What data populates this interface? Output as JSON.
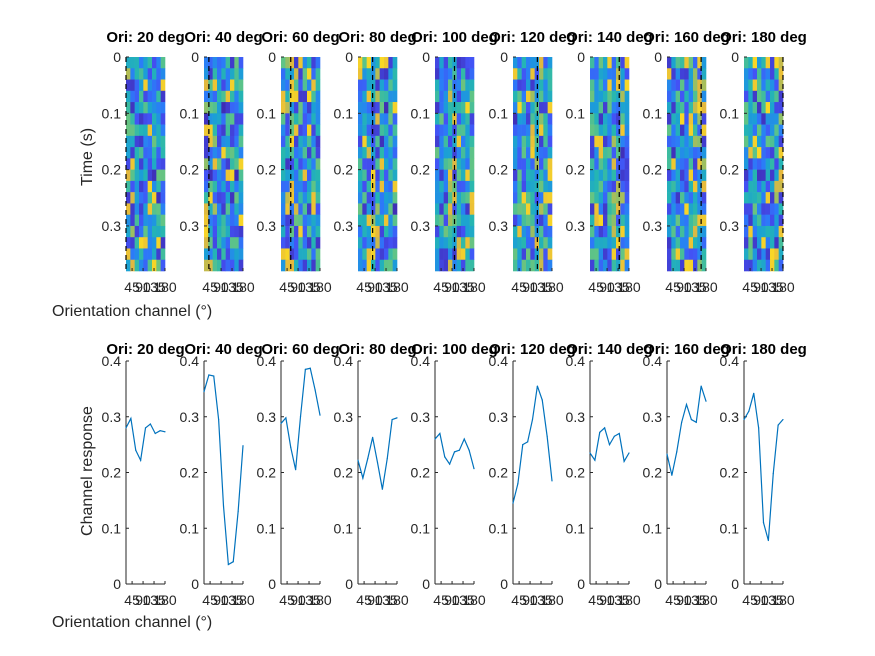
{
  "figure": {
    "row_titles": [
      "Ori: 20 deg",
      "Ori: 40 deg",
      "Ori: 60 deg",
      "Ori: 80 deg",
      "Ori: 100 deg",
      "Ori: 120 deg",
      "Ori: 140 deg",
      "Ori: 160 deg",
      "Ori: 180 deg"
    ],
    "line_color": "#0072BD",
    "grid": false
  },
  "chart_data": [
    {
      "type": "heatmap",
      "panel_titles": [
        "Ori: 20 deg",
        "Ori: 40 deg",
        "Ori: 60 deg",
        "Ori: 80 deg",
        "Ori: 100 deg",
        "Ori: 120 deg",
        "Ori: 140 deg",
        "Ori: 160 deg",
        "Ori: 180 deg"
      ],
      "ylabel": "Time (s)",
      "xlabel": "Orientation channel (°)",
      "yticks": [
        0,
        0.1,
        0.2,
        0.3
      ],
      "ytick_labels": [
        "0",
        "0.1",
        "0.2",
        "0.3"
      ],
      "ylim": [
        0,
        0.38
      ],
      "xticks": [
        45,
        90,
        135,
        180
      ],
      "xtick_labels": [
        "45",
        "90",
        "135",
        "180"
      ],
      "xlim": [
        20,
        180
      ],
      "channels": [
        20,
        40,
        60,
        80,
        100,
        120,
        140,
        160,
        180
      ],
      "time_bins": 19,
      "marker_orientations": [
        20,
        40,
        60,
        80,
        100,
        120,
        140,
        160,
        180
      ],
      "marker_style": "dashed black vertical line at stimulus orientation",
      "colormap": "parula",
      "colormap_stops": [
        "#3E26A8",
        "#4352F5",
        "#2B7CF8",
        "#1B9FD6",
        "#26B6B1",
        "#60C486",
        "#A4BE5C",
        "#E5B83D",
        "#F9D825"
      ]
    },
    {
      "type": "line",
      "panel_titles": [
        "Ori: 20 deg",
        "Ori: 40 deg",
        "Ori: 60 deg",
        "Ori: 80 deg",
        "Ori: 100 deg",
        "Ori: 120 deg",
        "Ori: 140 deg",
        "Ori: 160 deg",
        "Ori: 180 deg"
      ],
      "ylabel": "Channel response",
      "xlabel": "Orientation channel (°)",
      "x": [
        20,
        40,
        60,
        80,
        100,
        120,
        140,
        160,
        180
      ],
      "xticks": [
        45,
        90,
        135,
        180
      ],
      "xtick_labels": [
        "45",
        "90",
        "135",
        "180"
      ],
      "xlim": [
        20,
        180
      ],
      "ylim": [
        0,
        0.4
      ],
      "yticks": [
        0,
        0.1,
        0.2,
        0.3,
        0.4
      ],
      "ytick_labels": [
        "0",
        "0.1",
        "0.2",
        "0.3",
        "0.4"
      ],
      "series": [
        {
          "values": [
            0.28,
            0.297,
            0.24,
            0.222,
            0.28,
            0.287,
            0.27,
            0.275,
            0.273
          ]
        },
        {
          "values": [
            0.345,
            0.375,
            0.373,
            0.295,
            0.14,
            0.035,
            0.04,
            0.13,
            0.248
          ]
        },
        {
          "values": [
            0.288,
            0.298,
            0.245,
            0.205,
            0.3,
            0.385,
            0.387,
            0.348,
            0.303
          ]
        },
        {
          "values": [
            0.222,
            0.19,
            0.225,
            0.263,
            0.218,
            0.17,
            0.225,
            0.295,
            0.298
          ]
        },
        {
          "values": [
            0.26,
            0.27,
            0.228,
            0.215,
            0.237,
            0.24,
            0.26,
            0.24,
            0.207
          ]
        },
        {
          "values": [
            0.145,
            0.18,
            0.25,
            0.255,
            0.295,
            0.355,
            0.33,
            0.265,
            0.185
          ]
        },
        {
          "values": [
            0.235,
            0.222,
            0.272,
            0.28,
            0.25,
            0.265,
            0.27,
            0.22,
            0.235
          ]
        },
        {
          "values": [
            0.233,
            0.195,
            0.237,
            0.29,
            0.322,
            0.295,
            0.29,
            0.355,
            0.328
          ]
        },
        {
          "values": [
            0.295,
            0.31,
            0.342,
            0.28,
            0.11,
            0.078,
            0.198,
            0.285,
            0.295
          ]
        }
      ]
    }
  ]
}
